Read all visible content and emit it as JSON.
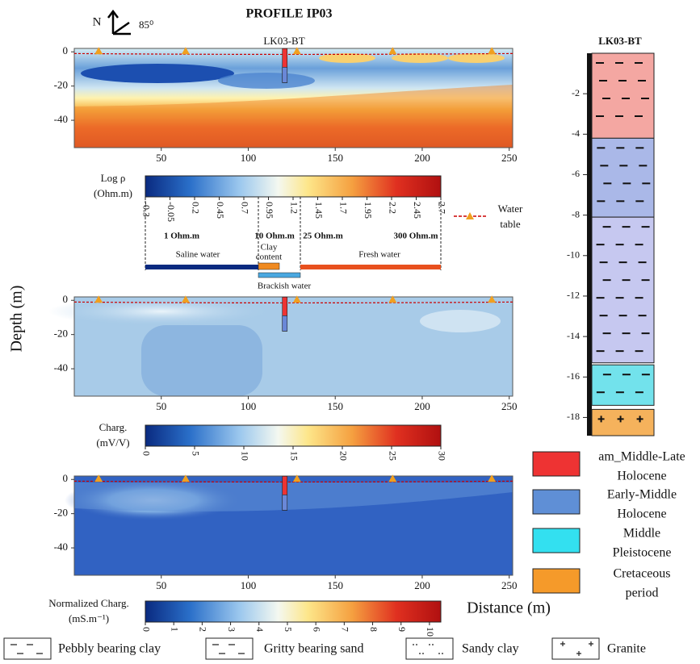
{
  "title": "PROFILE IP03",
  "north": {
    "label": "N",
    "angle": "85⁰"
  },
  "borehole_label": "LK03-BT",
  "y_axis_label": "Depth (m)",
  "x_axis_label": "Distance (m)",
  "sections": {
    "xlim": [
      0,
      252
    ],
    "xticks": [
      50,
      100,
      150,
      200,
      250
    ],
    "ylim": [
      -56,
      2
    ],
    "yticks": [
      0,
      -20,
      -40
    ],
    "borehole_x": 121,
    "water_table_x": [
      14,
      64,
      128,
      183,
      240
    ]
  },
  "colorbars": [
    {
      "label": [
        "Log ρ",
        "(Ohm.m)"
      ],
      "lim": [
        -0.3,
        2.7
      ],
      "ticks": [
        -0.3,
        -0.05,
        0.2,
        0.45,
        0.7,
        0.95,
        1.2,
        1.45,
        1.7,
        1.95,
        2.2,
        2.45,
        2.7
      ]
    },
    {
      "label": [
        "Charg.",
        "(mV/V)"
      ],
      "lim": [
        0,
        30
      ],
      "ticks": [
        0,
        5,
        10,
        15,
        20,
        25,
        30
      ]
    },
    {
      "label": [
        "Normalized Charg.",
        "(mS.m⁻¹)"
      ],
      "lim": [
        0,
        10.4
      ],
      "ticks": [
        0,
        1,
        2,
        3,
        4,
        5,
        6,
        7,
        8,
        9,
        10
      ]
    }
  ],
  "resistivity_notes": {
    "thresholds": [
      "1 Ohm.m",
      "10 Ohm.m",
      "25 Ohm.m",
      "300 Ohm.m"
    ],
    "clay": [
      "Clay",
      "content"
    ],
    "saline": "Saline water",
    "fresh": "Fresh water",
    "brackish": "Brackish water"
  },
  "water_table_legend": [
    "Water",
    "table"
  ],
  "log": {
    "title": "LK03-BT",
    "ylim": [
      0,
      -18.9
    ],
    "yticks": [
      -2,
      -4,
      -6,
      -8,
      -10,
      -12,
      -14,
      -16,
      -18
    ],
    "layers": [
      {
        "top": 0,
        "bottom": -4.2,
        "color": "#f4a7a2"
      },
      {
        "top": -4.2,
        "bottom": -8.1,
        "color": "#aab8e8"
      },
      {
        "top": -8.1,
        "bottom": -15.3,
        "color": "#c6c8f0"
      },
      {
        "top": -15.4,
        "bottom": -17.4,
        "color": "#72e2ec"
      },
      {
        "top": -17.6,
        "bottom": -18.9,
        "color": "#f5b25c"
      }
    ]
  },
  "age_legend": [
    {
      "label": [
        "am_Middle-Late",
        "Holocene"
      ],
      "color": "#ee3333"
    },
    {
      "label": [
        "Early-Middle",
        "Holocene"
      ],
      "color": "#5f8fd6"
    },
    {
      "label": [
        "Middle",
        "Pleistocene"
      ],
      "color": "#33e0f0"
    },
    {
      "label": [
        "Cretaceous",
        "period"
      ],
      "color": "#f59a2a"
    }
  ],
  "lithology_legend": [
    "Pebbly bearing clay",
    "Gritty bearing sand",
    "Sandy clay",
    "Granite"
  ]
}
